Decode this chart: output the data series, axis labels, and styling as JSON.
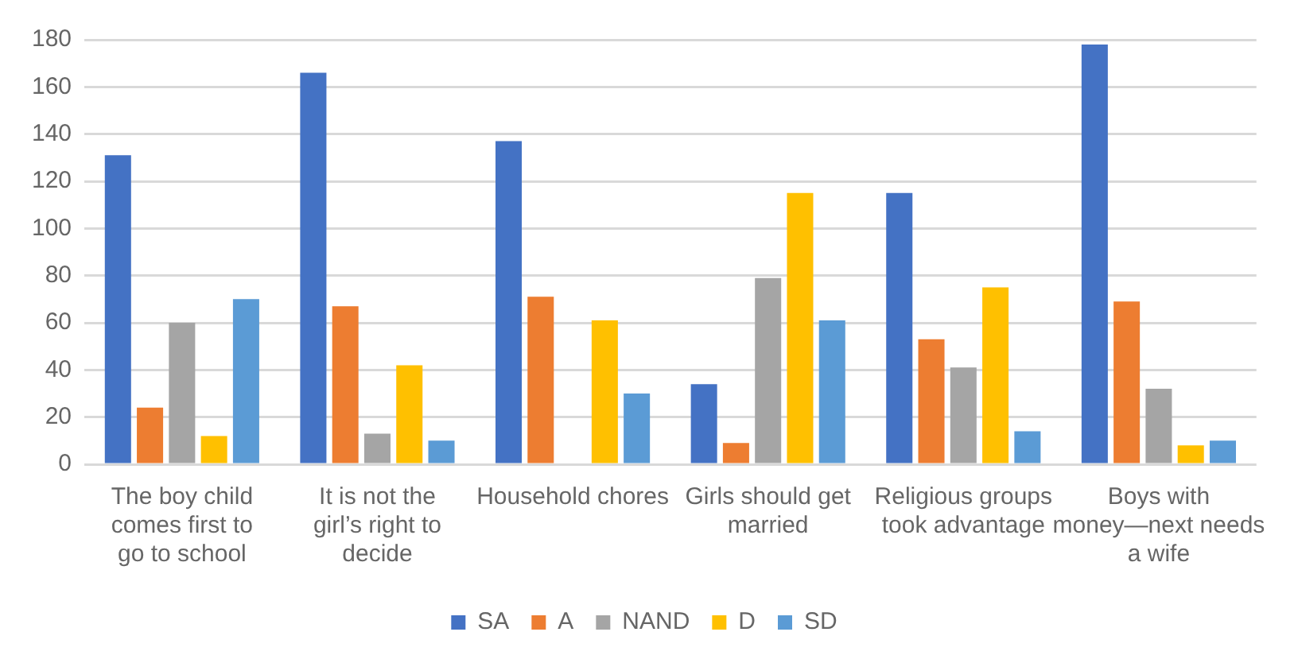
{
  "chart_data": {
    "type": "bar",
    "categories": [
      "The boy child comes first to go to school",
      "It is not the girl’s right to decide",
      "Household chores",
      "Girls should get married",
      "Religious groups took advantage",
      "Boys with money—next needs a wife"
    ],
    "series": [
      {
        "name": "SA",
        "color": "#4472c4",
        "values": [
          131,
          166,
          137,
          34,
          115,
          178
        ]
      },
      {
        "name": "A",
        "color": "#ed7d31",
        "values": [
          24,
          67,
          71,
          9,
          53,
          69
        ]
      },
      {
        "name": "NAND",
        "color": "#a5a5a5",
        "values": [
          60,
          13,
          null,
          79,
          41,
          32
        ]
      },
      {
        "name": "D",
        "color": "#ffc000",
        "values": [
          12,
          42,
          61,
          115,
          75,
          8
        ]
      },
      {
        "name": "SD",
        "color": "#5b9bd5",
        "values": [
          70,
          10,
          30,
          61,
          14,
          10
        ]
      }
    ],
    "ylim": [
      0,
      180
    ],
    "yticks": [
      0,
      20,
      40,
      60,
      80,
      100,
      120,
      140,
      160,
      180
    ],
    "grid": "y",
    "legend": "bottom"
  }
}
